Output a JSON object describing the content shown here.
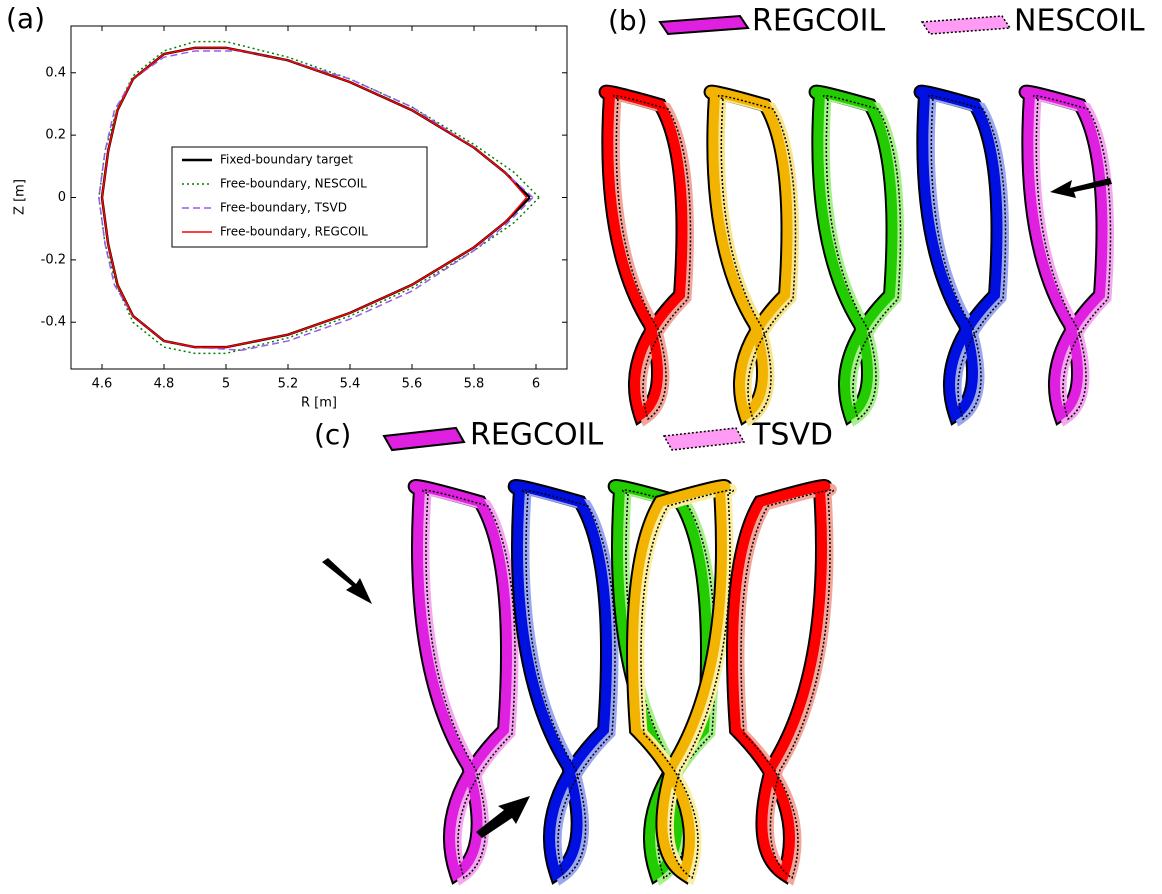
{
  "chart_data": {
    "type": "line",
    "title": "(a)",
    "xlabel": "R [m]",
    "ylabel": "Z [m]",
    "xlim": [
      4.5,
      6.1
    ],
    "xticks": [
      4.6,
      4.8,
      5.0,
      5.2,
      5.4,
      5.6,
      5.8,
      6.0
    ],
    "ylim": [
      -0.55,
      0.55
    ],
    "yticks": [
      -0.4,
      -0.2,
      0.0,
      0.2,
      0.4
    ],
    "grid": false,
    "series": [
      {
        "name": "Fixed-boundary target",
        "color": "#000000",
        "linestyle": "solid",
        "x": [
          5.98,
          5.9,
          5.8,
          5.6,
          5.4,
          5.2,
          5.0,
          4.9,
          4.8,
          4.7,
          4.65,
          4.62,
          4.6,
          4.62,
          4.65,
          4.7,
          4.8,
          4.9,
          5.0,
          5.2,
          5.4,
          5.6,
          5.8,
          5.9,
          5.98
        ],
        "values": [
          0,
          0.08,
          0.16,
          0.28,
          0.37,
          0.44,
          0.48,
          0.48,
          0.46,
          0.38,
          0.28,
          0.15,
          0,
          -0.15,
          -0.28,
          -0.38,
          -0.46,
          -0.48,
          -0.48,
          -0.44,
          -0.37,
          -0.28,
          -0.16,
          -0.08,
          0
        ]
      },
      {
        "name": "Free-boundary, NESCOIL",
        "color": "#007f00",
        "linestyle": "dotted",
        "x": [
          6.01,
          5.93,
          5.8,
          5.6,
          5.4,
          5.2,
          5.0,
          4.9,
          4.8,
          4.7,
          4.65,
          4.61,
          4.59,
          4.61,
          4.65,
          4.7,
          4.8,
          4.9,
          5.0,
          5.2,
          5.4,
          5.6,
          5.8,
          5.93,
          6.01
        ],
        "values": [
          0,
          0.08,
          0.17,
          0.29,
          0.38,
          0.45,
          0.5,
          0.5,
          0.47,
          0.39,
          0.29,
          0.15,
          0,
          -0.15,
          -0.29,
          -0.4,
          -0.48,
          -0.5,
          -0.5,
          -0.45,
          -0.38,
          -0.29,
          -0.17,
          -0.08,
          0
        ]
      },
      {
        "name": "Free-boundary, TSVD",
        "color": "#9b59f0",
        "linestyle": "dashed",
        "x": [
          5.99,
          5.9,
          5.8,
          5.6,
          5.4,
          5.2,
          5.05,
          4.9,
          4.8,
          4.7,
          4.64,
          4.61,
          4.59,
          4.61,
          4.64,
          4.7,
          4.8,
          4.9,
          5.05,
          5.2,
          5.4,
          5.6,
          5.8,
          5.9,
          5.99
        ],
        "values": [
          0,
          0.08,
          0.16,
          0.29,
          0.38,
          0.44,
          0.47,
          0.47,
          0.45,
          0.38,
          0.28,
          0.15,
          0,
          -0.15,
          -0.28,
          -0.38,
          -0.46,
          -0.48,
          -0.49,
          -0.46,
          -0.39,
          -0.3,
          -0.17,
          -0.09,
          0
        ]
      },
      {
        "name": "Free-boundary, REGCOIL",
        "color": "#ff0000",
        "linestyle": "solid",
        "x": [
          5.97,
          5.9,
          5.8,
          5.6,
          5.4,
          5.2,
          5.0,
          4.9,
          4.8,
          4.7,
          4.65,
          4.62,
          4.6,
          4.62,
          4.65,
          4.7,
          4.8,
          4.9,
          5.0,
          5.2,
          5.4,
          5.6,
          5.8,
          5.9,
          5.97
        ],
        "values": [
          0,
          0.08,
          0.16,
          0.28,
          0.37,
          0.44,
          0.48,
          0.48,
          0.46,
          0.38,
          0.28,
          0.15,
          0,
          -0.15,
          -0.28,
          -0.38,
          -0.46,
          -0.48,
          -0.48,
          -0.44,
          -0.37,
          -0.28,
          -0.16,
          -0.08,
          0
        ]
      }
    ]
  },
  "panel_b": {
    "label": "(b)",
    "legend": [
      "REGCOIL",
      "NESCOIL"
    ]
  },
  "panel_c": {
    "label": "(c)",
    "legend": [
      "REGCOIL",
      "TSVD"
    ]
  }
}
